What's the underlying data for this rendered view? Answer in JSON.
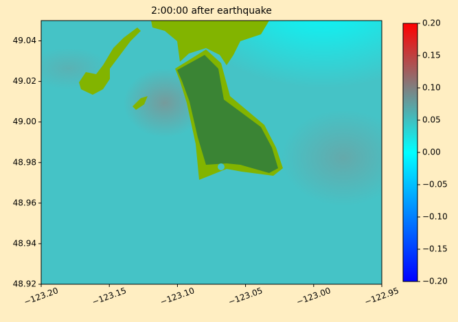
{
  "chart_data": {
    "type": "map",
    "title": "2:00:00 after earthquake",
    "xlim": [
      -123.2,
      -122.95
    ],
    "xticks": [
      {
        "value": -123.2,
        "label": "−123.20"
      },
      {
        "value": -123.15,
        "label": "−123.15"
      },
      {
        "value": -123.1,
        "label": "−123.10"
      },
      {
        "value": -123.05,
        "label": "−123.05"
      },
      {
        "value": -123.0,
        "label": "−123.00"
      },
      {
        "value": -122.95,
        "label": "−122.95"
      }
    ],
    "ylim": [
      48.92,
      49.05
    ],
    "yticks": [
      48.92,
      48.94,
      48.96,
      48.98,
      {
        "value": 49.0,
        "label": "49.00"
      },
      49.02,
      49.04
    ],
    "clim": [
      -0.2,
      0.2
    ],
    "cticks": [
      {
        "value": -0.2,
        "label": "−0.20"
      },
      {
        "value": -0.15,
        "label": "−0.15"
      },
      {
        "value": -0.1,
        "label": "−0.10"
      },
      {
        "value": -0.05,
        "label": "−0.05"
      },
      {
        "value": 0.0,
        "label": "0.00"
      },
      0.05,
      {
        "value": 0.1,
        "label": "0.10"
      },
      0.15,
      {
        "value": 0.2,
        "label": "0.20"
      }
    ],
    "colormap": [
      "#0000ff",
      "#00ffff",
      "#ff0000"
    ]
  }
}
